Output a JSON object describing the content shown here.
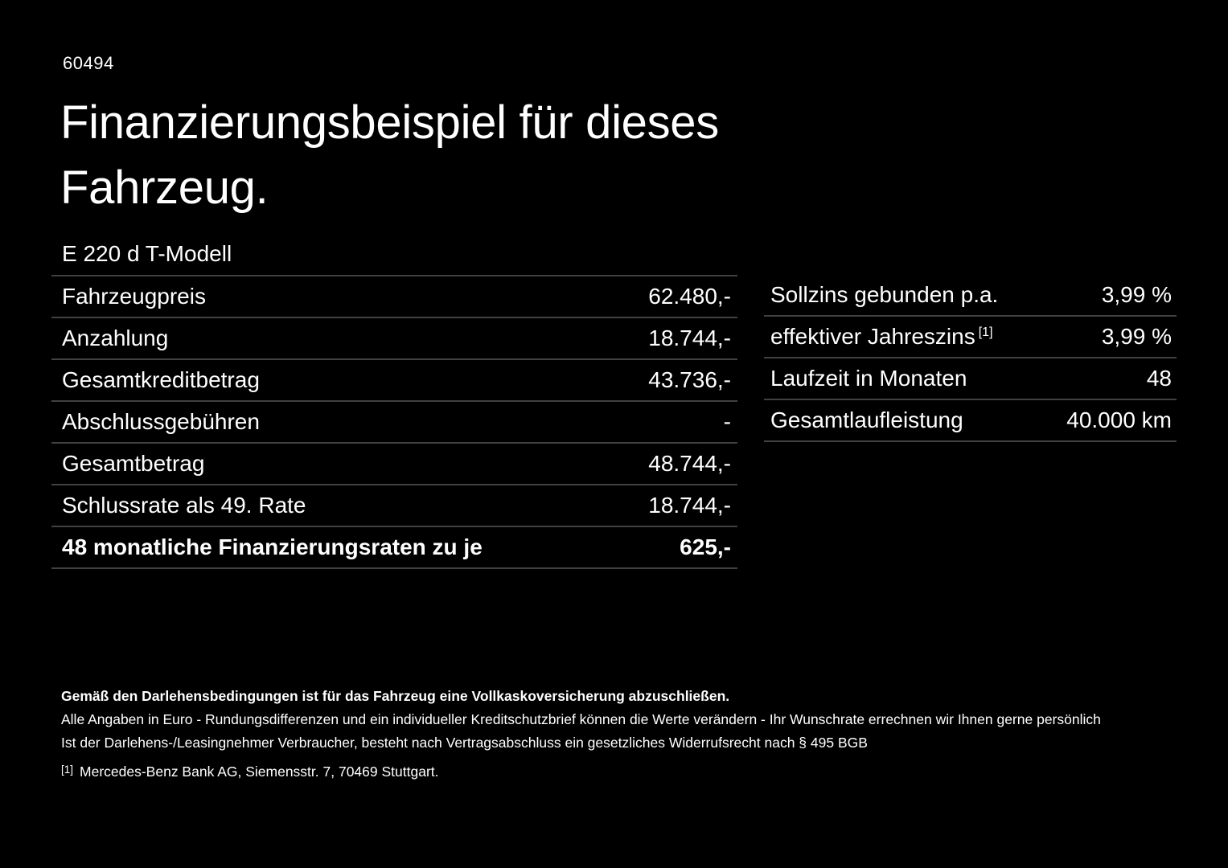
{
  "colors": {
    "background": "#000000",
    "text": "#ffffff",
    "divider": "#414141"
  },
  "header": {
    "code": "60494",
    "title_line1": "Finanzierungsbeispiel für dieses",
    "title_line2": "Fahrzeug.",
    "model": "E 220 d T-Modell"
  },
  "financing_table": {
    "rows": [
      {
        "label": "Fahrzeugpreis",
        "value": "62.480,-"
      },
      {
        "label": "Anzahlung",
        "value": "18.744,-"
      },
      {
        "label": "Gesamtkreditbetrag",
        "value": "43.736,-"
      },
      {
        "label": "Abschlussgebühren",
        "value": "-"
      },
      {
        "label": "Gesamtbetrag",
        "value": "48.744,-"
      },
      {
        "label": "Schlussrate als 49. Rate",
        "value": "18.744,-"
      },
      {
        "label": "48 monatliche Finanzierungsraten zu je",
        "value": "625,-"
      }
    ]
  },
  "conditions_table": {
    "rows": [
      {
        "label": "Sollzins gebunden p.a.",
        "value": "3,99 %"
      },
      {
        "label": "effektiver Jahreszins",
        "sup": "[1]",
        "value": "3,99 %"
      },
      {
        "label": "Laufzeit in Monaten",
        "value": "48"
      },
      {
        "label": "Gesamtlaufleistung",
        "value": "40.000 km"
      }
    ]
  },
  "fineprint": {
    "insurance_note": "Gemäß den Darlehensbedingungen ist für das Fahrzeug eine Vollkaskoversicherung abzuschließen.",
    "euro_note": "Alle Angaben in Euro - Rundungsdifferenzen und ein individueller Kreditschutzbrief können die Werte verändern - Ihr Wunschrate errechnen wir Ihnen gerne persönlich",
    "withdrawal_note": "Ist der Darlehens-/Leasingnehmer Verbraucher, besteht nach Vertragsabschluss ein gesetzliches Widerrufsrecht nach § 495 BGB",
    "footnote_mark": "[1]",
    "footnote_text": "Mercedes-Benz Bank AG, Siemensstr. 7, 70469 Stuttgart."
  }
}
